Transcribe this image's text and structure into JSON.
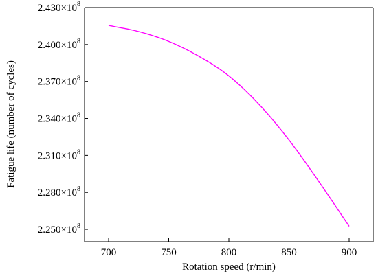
{
  "chart_data": {
    "type": "line",
    "xlabel": "Rotation speed (r/min)",
    "ylabel": "Fatigue life (number of cycles)",
    "xlim": [
      680,
      920
    ],
    "ylim": [
      2.24,
      2.43
    ],
    "y_exponent": "8",
    "x_ticks": [
      700,
      750,
      800,
      850,
      900
    ],
    "x_tick_labels": [
      "700",
      "750",
      "800",
      "850",
      "900"
    ],
    "y_ticks": [
      2.25,
      2.28,
      2.31,
      2.34,
      2.37,
      2.4,
      2.43
    ],
    "y_tick_labels": [
      "2.250×10",
      "2.280×10",
      "2.310×10",
      "2.340×10",
      "2.370×10",
      "2.400×10",
      "2.430×10"
    ],
    "grid": false,
    "series": [
      {
        "color": "#ff00ff",
        "x": [
          700,
          725,
          750,
          775,
          800,
          825,
          850,
          875,
          900
        ],
        "y": [
          2.4155,
          2.4105,
          2.4025,
          2.3905,
          2.3745,
          2.3515,
          2.3225,
          2.2885,
          2.2525
        ]
      }
    ]
  }
}
